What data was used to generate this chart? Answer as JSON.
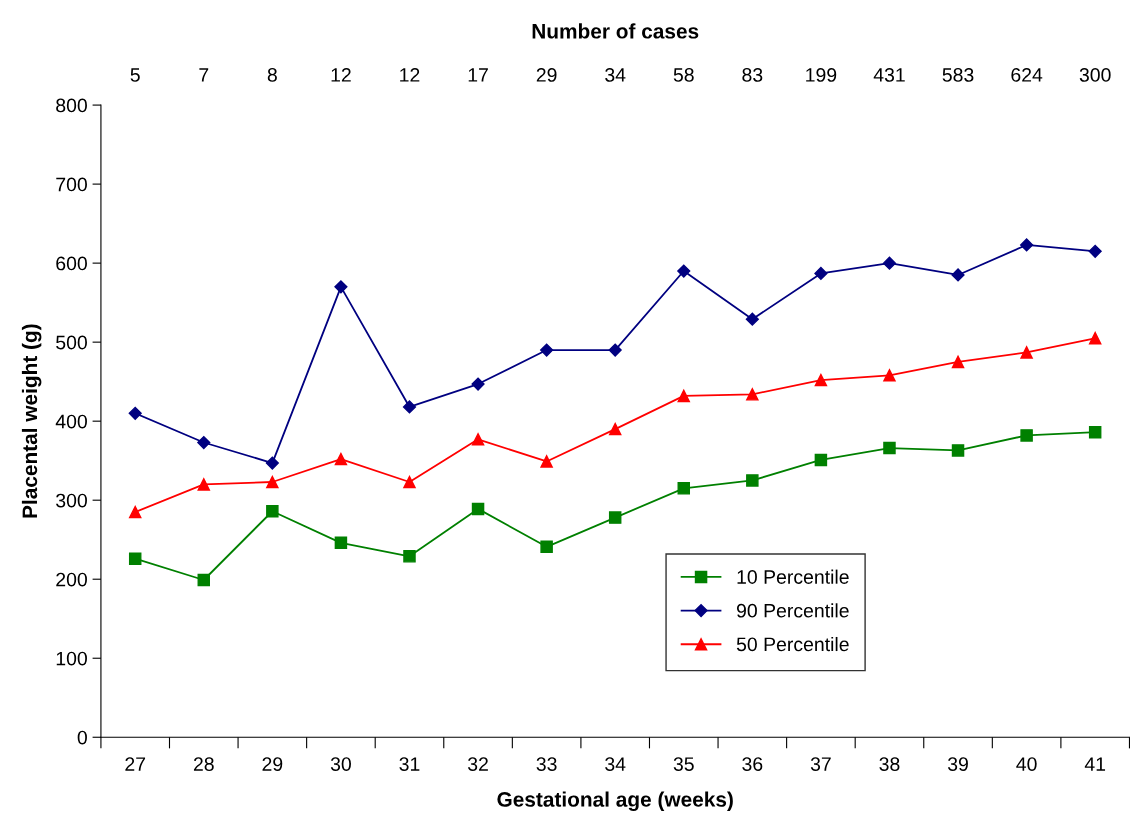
{
  "chart_data": {
    "type": "line",
    "title": "Number of cases",
    "xlabel": "Gestational age (weeks)",
    "ylabel": "Placental weight (g)",
    "annotations": [
      "5",
      "7",
      "8",
      "12",
      "12",
      "17",
      "29",
      "34",
      "58",
      "83",
      "199",
      "431",
      "583",
      "624",
      "300"
    ],
    "categories": [
      "27",
      "28",
      "29",
      "30",
      "31",
      "32",
      "33",
      "34",
      "35",
      "36",
      "37",
      "38",
      "39",
      "40",
      "41"
    ],
    "ylim": [
      0,
      800
    ],
    "yticks": [
      0,
      100,
      200,
      300,
      400,
      500,
      600,
      700,
      800
    ],
    "grid": false,
    "legend": "bottom right",
    "series": [
      {
        "name": "10 Percentile",
        "color": "#008000",
        "marker": "square",
        "values": [
          226,
          199,
          286,
          246,
          229,
          289,
          241,
          278,
          315,
          325,
          351,
          366,
          363,
          382,
          386
        ]
      },
      {
        "name": "90 Percentile",
        "color": "#000080",
        "marker": "diamond",
        "values": [
          410,
          373,
          347,
          570,
          418,
          447,
          490,
          490,
          590,
          529,
          587,
          600,
          585,
          623,
          615
        ]
      },
      {
        "name": "50 Percentile",
        "color": "#ff0000",
        "marker": "triangle",
        "values": [
          285,
          320,
          323,
          352,
          323,
          377,
          349,
          390,
          432,
          434,
          452,
          458,
          475,
          487,
          505
        ]
      }
    ]
  }
}
